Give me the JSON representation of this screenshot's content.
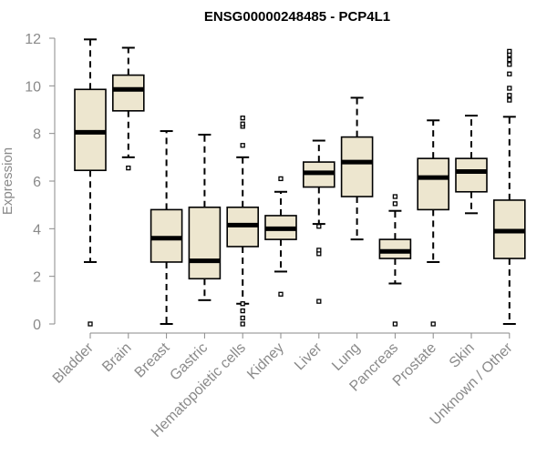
{
  "chart_data": {
    "type": "box",
    "title": "ENSG00000248485 - PCP4L1",
    "xlabel": "",
    "ylabel": "Expression",
    "ylim": [
      0,
      12
    ],
    "yticks": [
      0,
      2,
      4,
      6,
      8,
      10,
      12
    ],
    "colors": {
      "box_fill": "#ede6cf",
      "axis": "#8a8a8a",
      "median": "#000000"
    },
    "categories": [
      "Bladder",
      "Brain",
      "Breast",
      "Gastric",
      "Hematopoietic cells",
      "Kidney",
      "Liver",
      "Lung",
      "Pancreas",
      "Prostate",
      "Skin",
      "Unknown / Other"
    ],
    "boxes": [
      {
        "category": "Bladder",
        "whisker_low": 2.6,
        "q1": 6.45,
        "median": 8.05,
        "q3": 9.85,
        "whisker_high": 11.95,
        "outliers": [
          0.0
        ]
      },
      {
        "category": "Brain",
        "whisker_low": 7.0,
        "q1": 8.95,
        "median": 9.85,
        "q3": 10.45,
        "whisker_high": 11.6,
        "outliers": [
          6.55
        ]
      },
      {
        "category": "Breast",
        "whisker_low": 0.0,
        "q1": 2.6,
        "median": 3.6,
        "q3": 4.8,
        "whisker_high": 8.1,
        "outliers": []
      },
      {
        "category": "Gastric",
        "whisker_low": 1.0,
        "q1": 1.9,
        "median": 2.65,
        "q3": 4.9,
        "whisker_high": 7.95,
        "outliers": []
      },
      {
        "category": "Hematopoietic cells",
        "whisker_low": 0.85,
        "q1": 3.25,
        "median": 4.15,
        "q3": 4.9,
        "whisker_high": 7.0,
        "outliers": [
          0.0,
          0.25,
          0.55,
          0.85,
          7.5,
          8.3,
          8.4,
          8.65
        ]
      },
      {
        "category": "Kidney",
        "whisker_low": 2.2,
        "q1": 3.55,
        "median": 4.0,
        "q3": 4.55,
        "whisker_high": 5.55,
        "outliers": [
          1.25,
          6.1
        ]
      },
      {
        "category": "Liver",
        "whisker_low": 4.2,
        "q1": 5.75,
        "median": 6.35,
        "q3": 6.8,
        "whisker_high": 7.7,
        "outliers": [
          0.95,
          2.95,
          3.1,
          4.1
        ]
      },
      {
        "category": "Lung",
        "whisker_low": 3.55,
        "q1": 5.35,
        "median": 6.8,
        "q3": 7.85,
        "whisker_high": 9.5,
        "outliers": []
      },
      {
        "category": "Pancreas",
        "whisker_low": 1.7,
        "q1": 2.75,
        "median": 3.05,
        "q3": 3.55,
        "whisker_high": 4.75,
        "outliers": [
          0.0,
          5.05,
          5.35
        ]
      },
      {
        "category": "Prostate",
        "whisker_low": 2.6,
        "q1": 4.8,
        "median": 6.15,
        "q3": 6.95,
        "whisker_high": 8.55,
        "outliers": [
          0.0
        ]
      },
      {
        "category": "Skin",
        "whisker_low": 4.65,
        "q1": 5.55,
        "median": 6.4,
        "q3": 6.95,
        "whisker_high": 8.75,
        "outliers": []
      },
      {
        "category": "Unknown / Other",
        "whisker_low": 0.0,
        "q1": 2.75,
        "median": 3.9,
        "q3": 5.2,
        "whisker_high": 8.7,
        "outliers": [
          9.4,
          9.6,
          9.9,
          10.5,
          10.9,
          11.1,
          11.3,
          11.45
        ]
      }
    ]
  }
}
